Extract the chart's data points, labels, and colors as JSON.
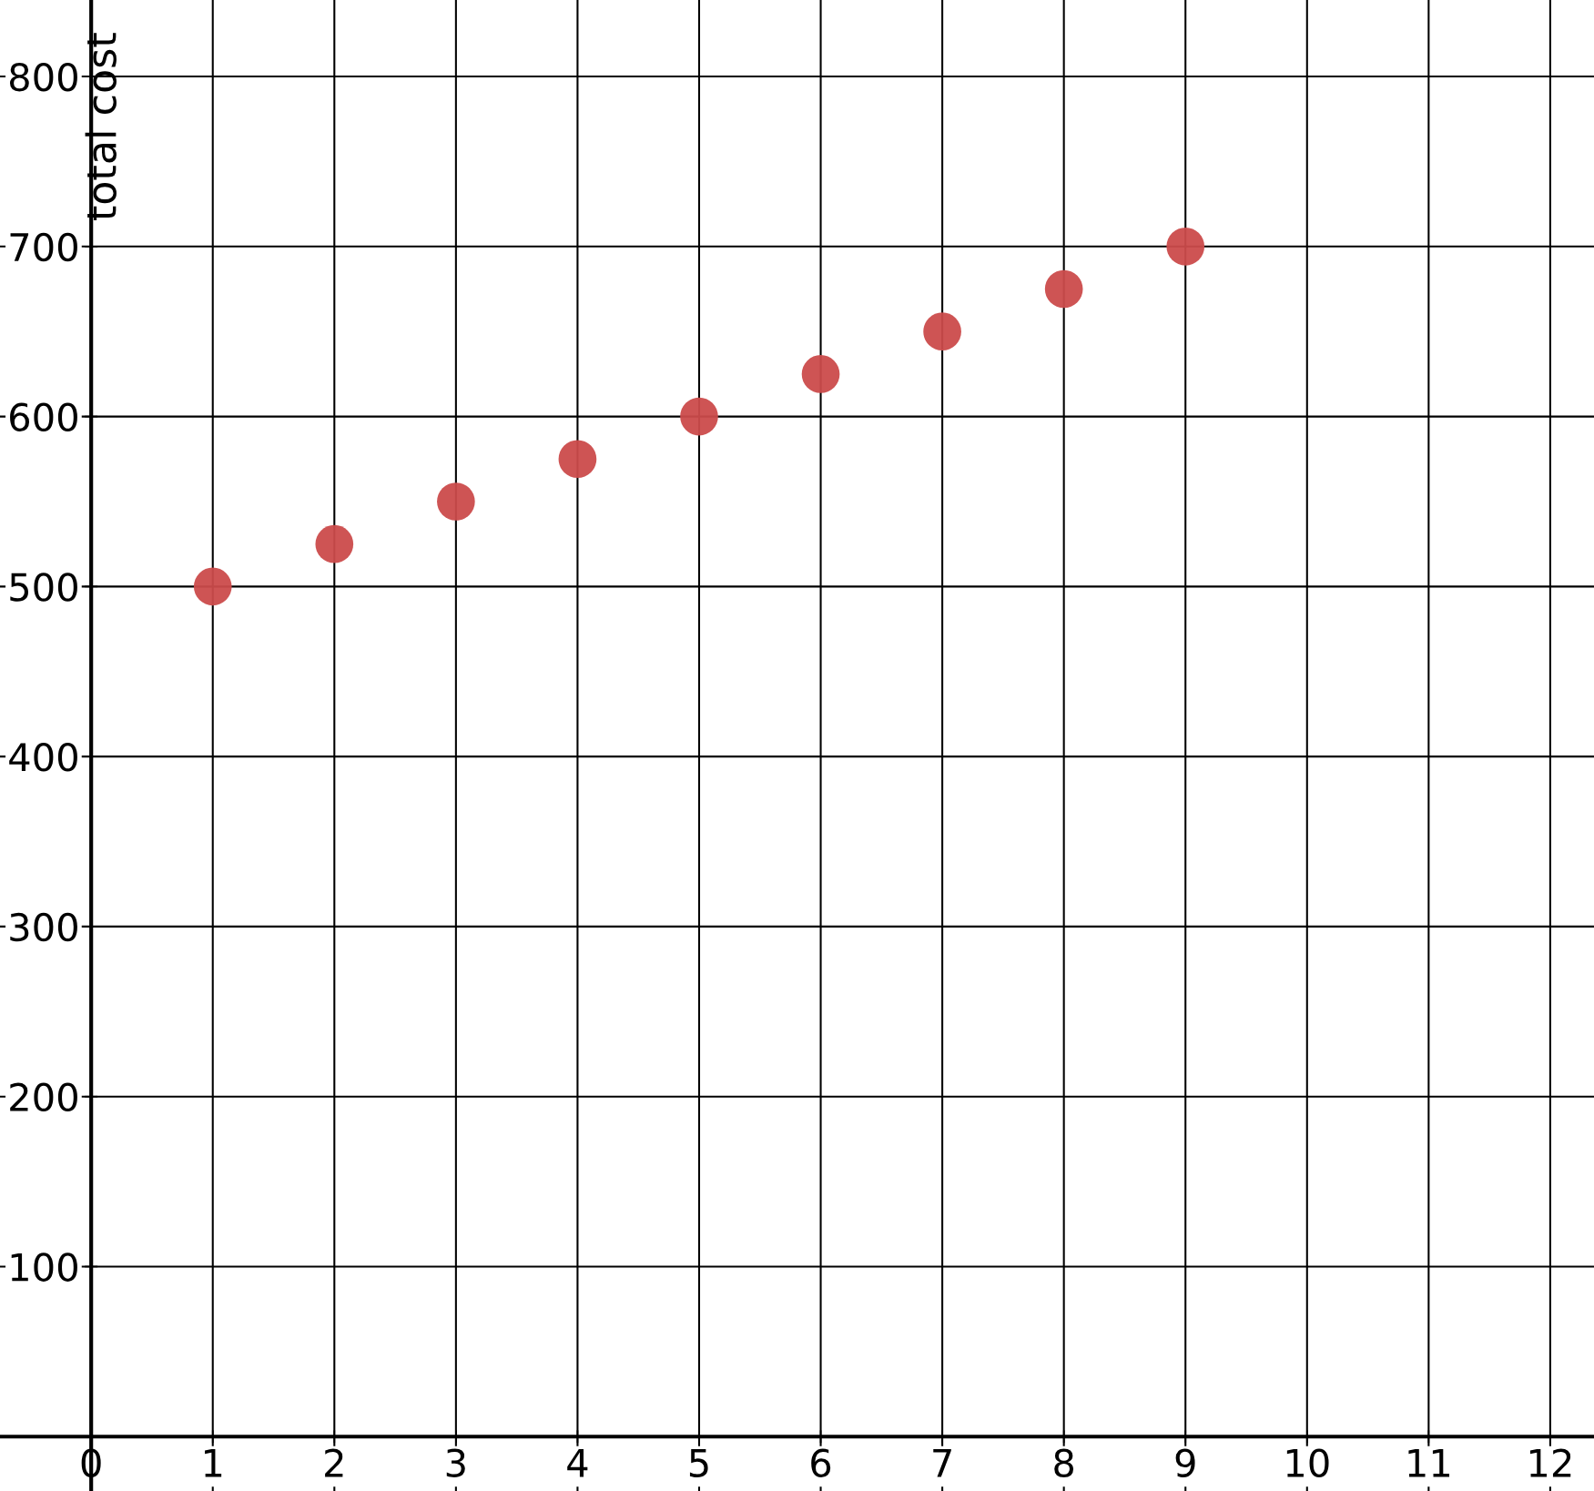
{
  "chart_data": {
    "type": "scatter",
    "ylabel": "total cost",
    "x": [
      1,
      2,
      3,
      4,
      5,
      6,
      7,
      8,
      9
    ],
    "values": [
      500,
      525,
      550,
      575,
      600,
      625,
      650,
      675,
      700
    ],
    "color": "#cb4b4b",
    "marker": "circle",
    "xlim": [
      -0.75,
      12.36
    ],
    "ylim": [
      -32,
      845
    ],
    "xticks": [
      0,
      1,
      2,
      3,
      4,
      5,
      6,
      7,
      8,
      9,
      10,
      11,
      12
    ],
    "yticks": [
      100,
      200,
      300,
      400,
      500,
      600,
      700,
      800
    ],
    "grid": true
  }
}
